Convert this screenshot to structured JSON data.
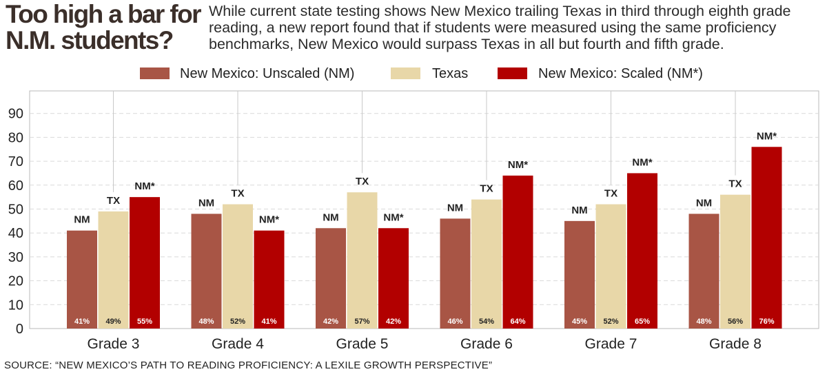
{
  "title": "Too high a bar for N.M. students?",
  "subtitle": "While current state testing shows New Mexico trailing Texas in third through eighth grade reading, a new report found that if students were measured using the same proficiency benchmarks, New Mexico would surpass Texas in all but fourth and fifth grade.",
  "source": "SOURCE: “NEW MEXICO’S PATH TO READING PROFICIENCY: A LEXILE GROWTH PERSPECTIVE”",
  "chart_data": {
    "type": "bar",
    "categories": [
      "Grade 3",
      "Grade 4",
      "Grade 5",
      "Grade 6",
      "Grade 7",
      "Grade 8"
    ],
    "series": [
      {
        "name": "New Mexico: Unscaled (NM)",
        "short": "NM",
        "color": "#a85545",
        "values": [
          41,
          48,
          42,
          46,
          45,
          48
        ],
        "labels": [
          "41%",
          "48%",
          "42%",
          "46%",
          "45%",
          "48%"
        ]
      },
      {
        "name": "Texas",
        "short": "TX",
        "color": "#e8d7a8",
        "values": [
          49,
          52,
          57,
          54,
          52,
          56
        ],
        "labels": [
          "49%",
          "52%",
          "57%",
          "54%",
          "52%",
          "56%"
        ]
      },
      {
        "name": "New Mexico: Scaled (NM*)",
        "short": "NM*",
        "color": "#b20000",
        "values": [
          55,
          41,
          42,
          64,
          65,
          76
        ],
        "labels": [
          "55%",
          "41%",
          "42%",
          "64%",
          "65%",
          "76%"
        ]
      }
    ],
    "yticks": [
      0,
      10,
      20,
      30,
      40,
      50,
      60,
      70,
      80,
      90
    ],
    "ylim": [
      0,
      95
    ],
    "grid": true,
    "legend": "top-center"
  }
}
